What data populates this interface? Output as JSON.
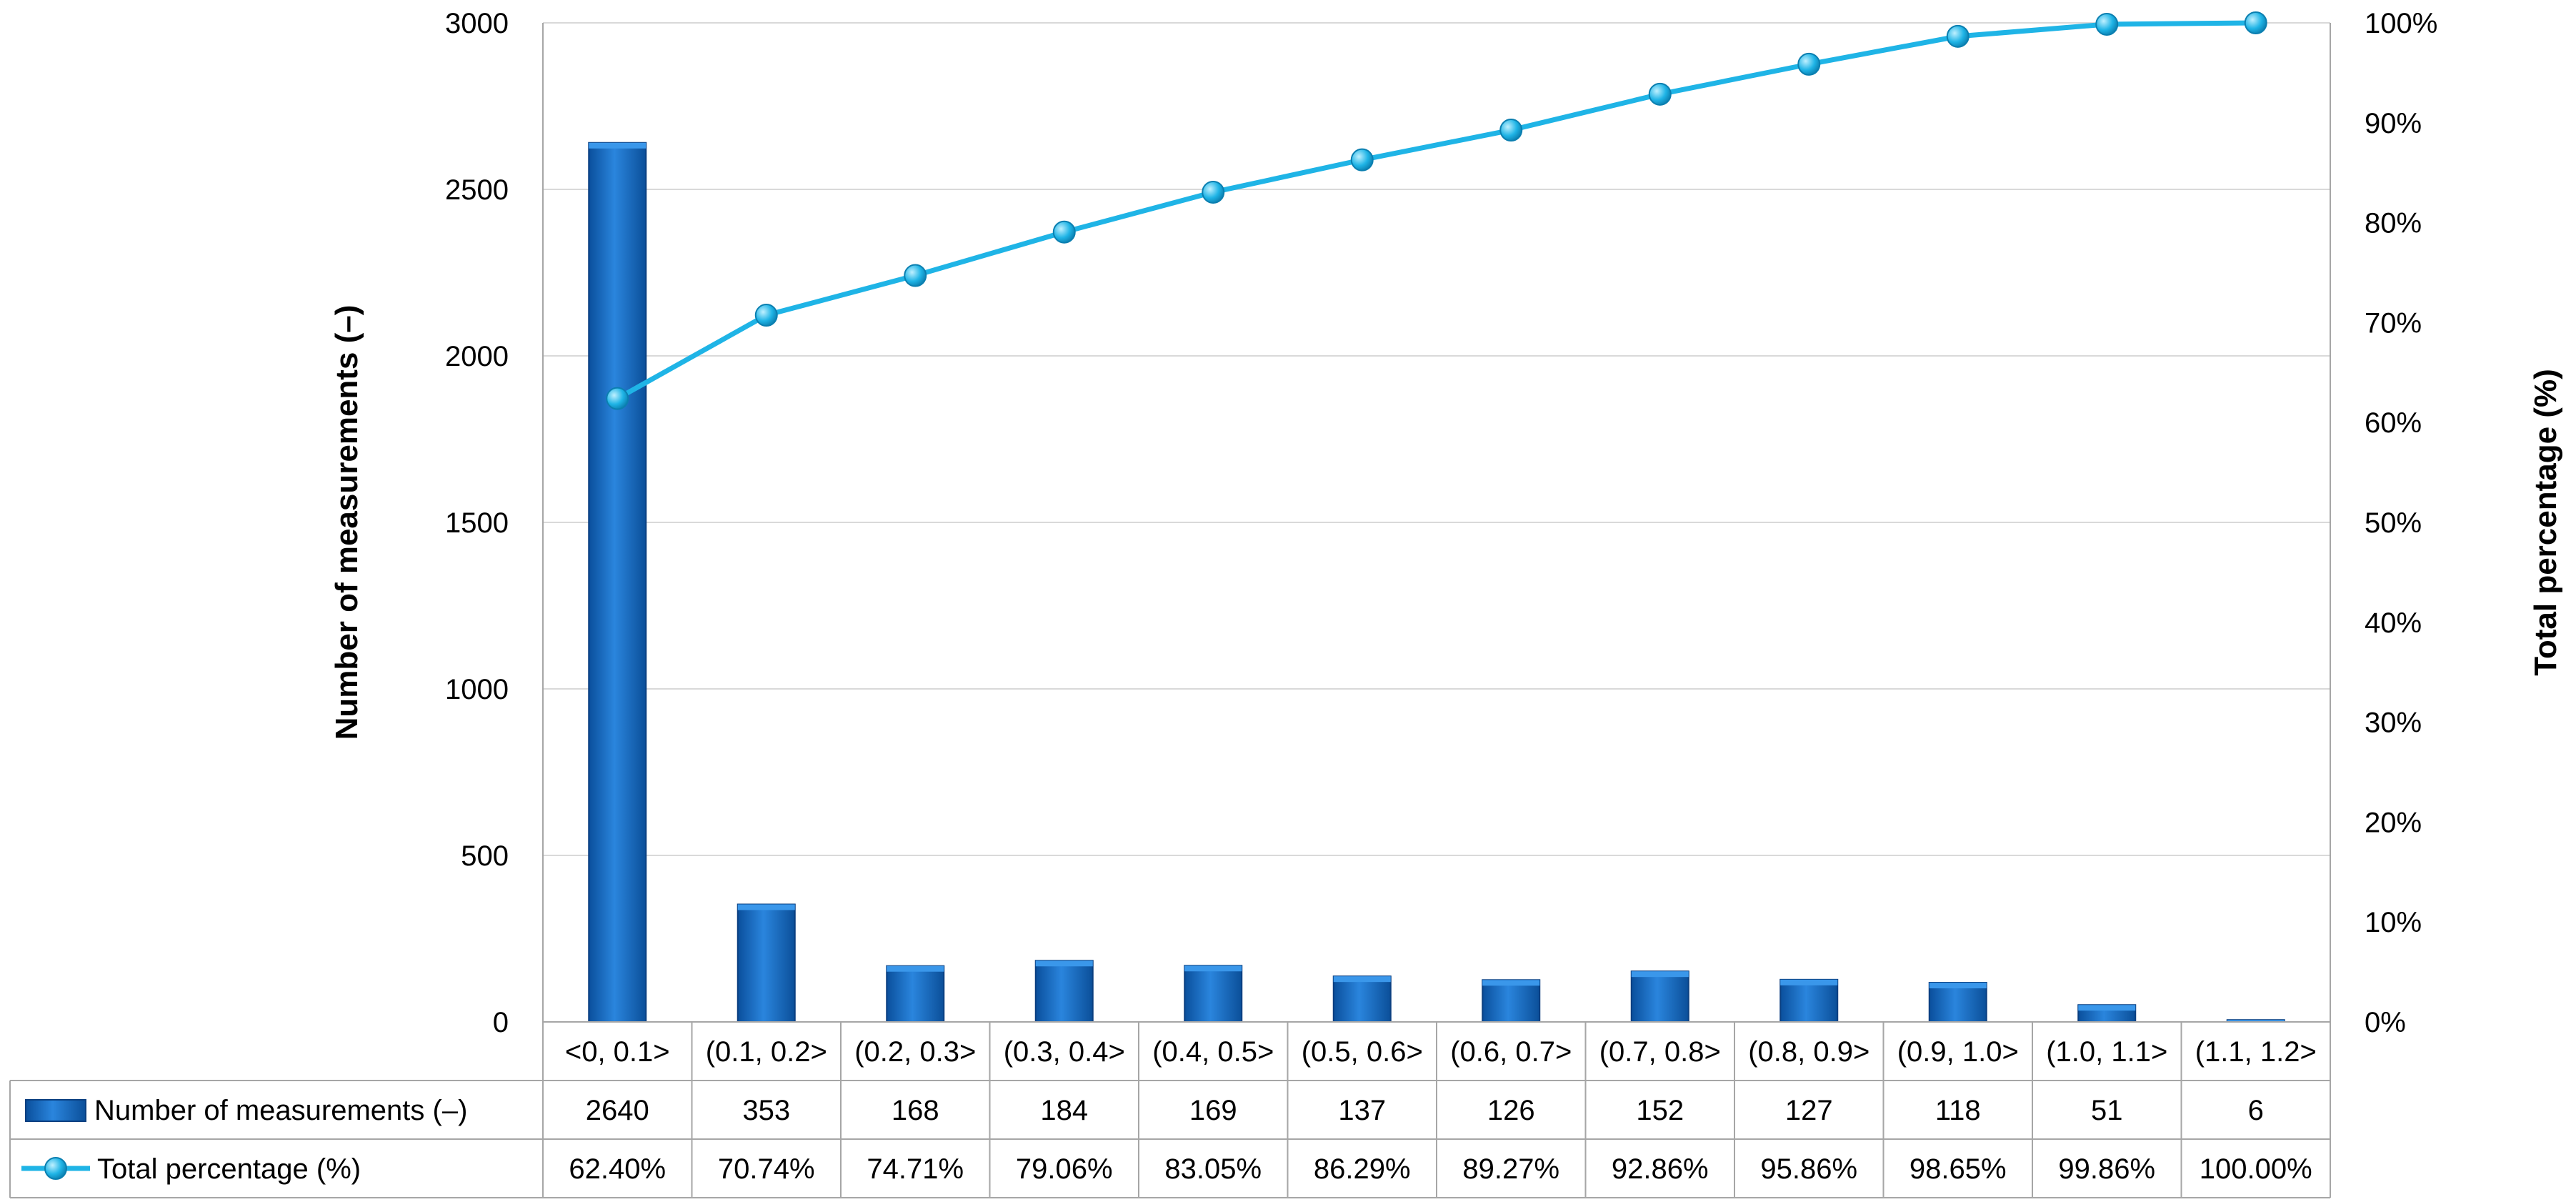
{
  "chart_data": {
    "type": "bar",
    "categories": [
      "<0, 0.1>",
      "(0.1, 0.2>",
      "(0.2, 0.3>",
      "(0.3, 0.4>",
      "(0.4, 0.5>",
      "(0.5, 0.6>",
      "(0.6, 0.7>",
      "(0.7, 0.8>",
      "(0.8, 0.9>",
      "(0.9, 1.0>",
      "(1.0, 1.1>",
      "(1.1, 1.2>"
    ],
    "series": [
      {
        "name": "Number of measurements (–)",
        "type": "bar",
        "axis": "left",
        "color": "#1f6fc5",
        "values": [
          2640,
          353,
          168,
          184,
          169,
          137,
          126,
          152,
          127,
          118,
          51,
          6
        ],
        "labels": [
          "2640",
          "353",
          "168",
          "184",
          "169",
          "137",
          "126",
          "152",
          "127",
          "118",
          "51",
          "6"
        ]
      },
      {
        "name": "Total percentage (%)",
        "type": "line",
        "axis": "right",
        "color": "#1fb4e6",
        "values": [
          62.4,
          70.74,
          74.71,
          79.06,
          83.05,
          86.29,
          89.27,
          92.86,
          95.86,
          98.65,
          99.86,
          100.0
        ],
        "labels": [
          "62.40%",
          "70.74%",
          "74.71%",
          "79.06%",
          "83.05%",
          "86.29%",
          "89.27%",
          "92.86%",
          "95.86%",
          "98.65%",
          "99.86%",
          "100.00%"
        ]
      }
    ],
    "ylabel": "Number of measurements (–)",
    "ylim": [
      0,
      3000
    ],
    "yticks": [
      "0",
      "500",
      "1000",
      "1500",
      "2000",
      "2500",
      "3000"
    ],
    "y2label": "Total percentage (%)",
    "y2lim": [
      0,
      100
    ],
    "y2ticks": [
      "0%",
      "10%",
      "20%",
      "30%",
      "40%",
      "50%",
      "60%",
      "70%",
      "80%",
      "90%",
      "100%"
    ],
    "grid": true,
    "legend": "data-table"
  }
}
